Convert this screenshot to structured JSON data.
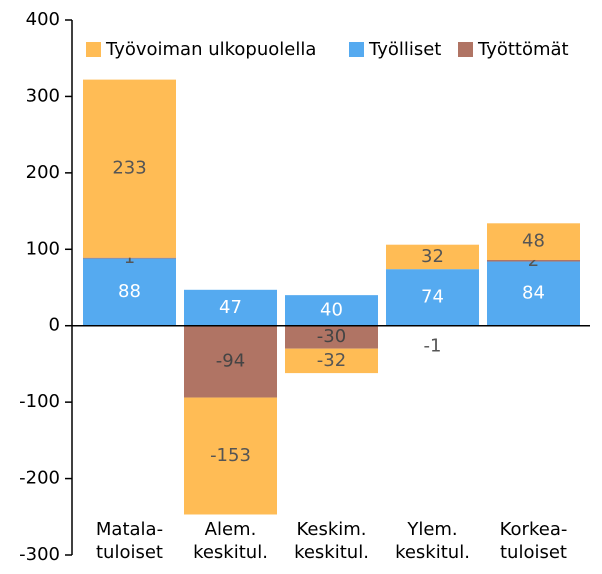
{
  "chart_data": {
    "type": "stacked-bar",
    "categories": [
      "Matala-\ntuloiset",
      "Alem.\nkeskitul.",
      "Keskim.\nkeskitul.",
      "Ylem.\nkeskitul.",
      "Korkea-\ntuloiset"
    ],
    "series": [
      {
        "name": "Työlliset",
        "color": "#55aaf0",
        "values": [
          88,
          47,
          40,
          74,
          84
        ]
      },
      {
        "name": "Työttömät",
        "color": "#b07464",
        "values": [
          1,
          -94,
          -30,
          -1,
          2
        ]
      },
      {
        "name": "Työvoiman ulkopuolella",
        "color": "#ffbc55",
        "values": [
          233,
          -153,
          -32,
          32,
          48
        ]
      }
    ],
    "ylim": [
      -300,
      400
    ],
    "yticks": [
      -300,
      -200,
      -100,
      0,
      100,
      200,
      300,
      400
    ],
    "legend": "top"
  }
}
